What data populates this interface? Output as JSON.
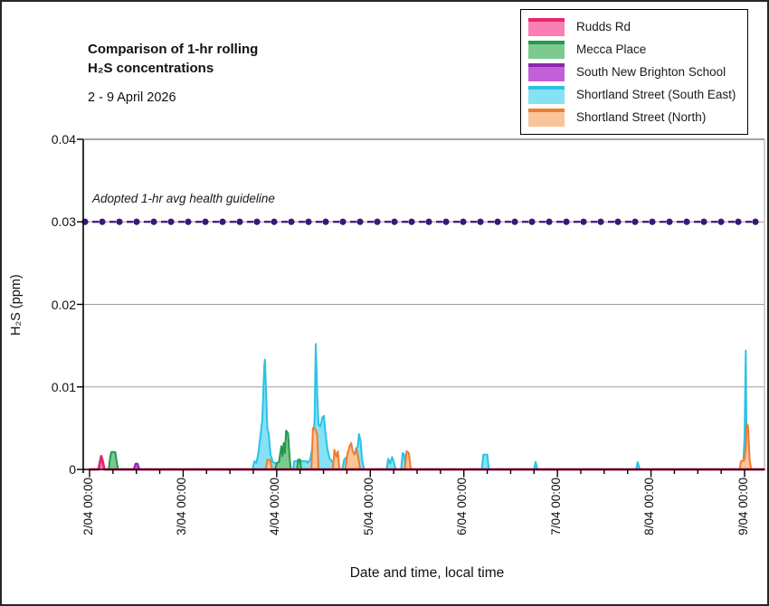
{
  "figure": {
    "title_line1": "Comparison of 1-hr rolling",
    "title_line2": "H₂S concentrations",
    "date_range": "2 - 9 April 2026"
  },
  "chart_data": {
    "type": "area",
    "title": "Comparison of 1-hr rolling H₂S concentrations",
    "subtitle": "2 - 9 April 2026",
    "xlabel": "Date and time, local time",
    "ylabel": "H₂S (ppm)",
    "ylim": [
      0,
      0.04
    ],
    "x_hours_domain": [
      0,
      173
    ],
    "grid": "horizontal-gray",
    "legend_position": "top-right",
    "y_ticks": [
      {
        "v": 0,
        "label": "0"
      },
      {
        "v": 0.01,
        "label": "0.01"
      },
      {
        "v": 0.02,
        "label": "0.02"
      },
      {
        "v": 0.03,
        "label": "0.03"
      },
      {
        "v": 0.04,
        "label": "0.04"
      }
    ],
    "x_ticks": [
      {
        "h": 0,
        "label": "2/04 00:00"
      },
      {
        "h": 24,
        "label": "3/04 00:00"
      },
      {
        "h": 48,
        "label": "4/04 00:00"
      },
      {
        "h": 72,
        "label": "5/04 00:00"
      },
      {
        "h": 96,
        "label": "6/04 00:00"
      },
      {
        "h": 120,
        "label": "7/04 00:00"
      },
      {
        "h": 144,
        "label": "8/04 00:00"
      },
      {
        "h": 168,
        "label": "9/04 00:00"
      }
    ],
    "x_minor_step_hours": 6,
    "guideline": {
      "value": 0.03,
      "label": "Adopted 1-hr avg health guideline",
      "color": "#3A1878",
      "style": "dashed-with-dot-markers"
    },
    "axis_colors": {
      "axis": "#000000",
      "grid": "#9e9e9e",
      "right_border": "#b5b5b5"
    },
    "series": [
      {
        "name": "Rudds Rd",
        "line": "#E8256D",
        "fill": "#FA7FB2",
        "points_hours_ppm": [
          [
            0,
            0
          ],
          [
            2.3,
            0
          ],
          [
            2.7,
            0.0009
          ],
          [
            3,
            0.0016
          ],
          [
            3.4,
            0.0009
          ],
          [
            3.8,
            0
          ],
          [
            173,
            0
          ]
        ]
      },
      {
        "name": "Mecca Place",
        "line": "#1F9B4D",
        "fill": "#7CC98F",
        "points_hours_ppm": [
          [
            4.9,
            0
          ],
          [
            5.3,
            0.0015
          ],
          [
            5.6,
            0.0021
          ],
          [
            6.6,
            0.0021
          ],
          [
            7,
            0.0008
          ],
          [
            7.3,
            0
          ],
          [
            47.6,
            0
          ],
          [
            48,
            0.0008
          ],
          [
            48.6,
            0.0009
          ],
          [
            48.9,
            0.0019
          ],
          [
            49.2,
            0.0028
          ],
          [
            49.5,
            0.0016
          ],
          [
            49.8,
            0.0032
          ],
          [
            50.1,
            0.002
          ],
          [
            50.4,
            0.0047
          ],
          [
            50.9,
            0.0044
          ],
          [
            51.3,
            0.0015
          ],
          [
            51.6,
            0
          ],
          [
            53.2,
            0
          ],
          [
            53.5,
            0.0012
          ],
          [
            54,
            0.0012
          ],
          [
            54.3,
            0
          ]
        ]
      },
      {
        "name": "South New Brighton School",
        "line": "#8927B0",
        "fill": "#C45FD8",
        "points_hours_ppm": [
          [
            11.3,
            0
          ],
          [
            11.8,
            0.0007
          ],
          [
            12.3,
            0.0007
          ],
          [
            12.8,
            0
          ]
        ]
      },
      {
        "name": "Shortland Street (South East)",
        "line": "#2BC2E6",
        "fill": "#85E2F5",
        "points_hours_ppm": [
          [
            41.8,
            0
          ],
          [
            42.3,
            0.001
          ],
          [
            42.8,
            0.0008
          ],
          [
            43.3,
            0.002
          ],
          [
            43.8,
            0.004
          ],
          [
            44.3,
            0.006
          ],
          [
            44.8,
            0.0125
          ],
          [
            45,
            0.0133
          ],
          [
            45.3,
            0.009
          ],
          [
            45.6,
            0.005
          ],
          [
            46,
            0.0042
          ],
          [
            46.4,
            0.0018
          ],
          [
            47,
            0.0009
          ],
          [
            48.5,
            0.0006
          ],
          [
            49,
            0
          ],
          [
            52.2,
            0
          ],
          [
            52.5,
            0.001
          ],
          [
            55.6,
            0.001
          ],
          [
            55.9,
            0.0008
          ],
          [
            56.6,
            0.0012
          ],
          [
            57.2,
            0.0028
          ],
          [
            57.7,
            0.006
          ],
          [
            58,
            0.0152
          ],
          [
            58.4,
            0.009
          ],
          [
            58.7,
            0.0055
          ],
          [
            59.2,
            0.0052
          ],
          [
            59.7,
            0.0063
          ],
          [
            60.1,
            0.0065
          ],
          [
            60.5,
            0.0045
          ],
          [
            61,
            0.0025
          ],
          [
            61.5,
            0.0014
          ],
          [
            62.3,
            0.0009
          ],
          [
            63.3,
            0.0008
          ],
          [
            63.8,
            0
          ],
          [
            64.8,
            0
          ],
          [
            65.3,
            0.0012
          ],
          [
            66,
            0.0015
          ],
          [
            66.6,
            0.001
          ],
          [
            67.3,
            0.0012
          ],
          [
            67.8,
            0.001
          ],
          [
            68.3,
            0.0025
          ],
          [
            68.8,
            0.0028
          ],
          [
            69.1,
            0.0043
          ],
          [
            69.5,
            0.0035
          ],
          [
            69.9,
            0.0012
          ],
          [
            70.4,
            0
          ],
          [
            76.2,
            0
          ],
          [
            76.6,
            0.0013
          ],
          [
            77.1,
            0.0007
          ],
          [
            77.6,
            0.0015
          ],
          [
            78.1,
            0.0008
          ],
          [
            78.5,
            0
          ],
          [
            79.9,
            0
          ],
          [
            80.3,
            0.002
          ],
          [
            80.7,
            0.0018
          ],
          [
            81.1,
            0
          ],
          [
            100.6,
            0
          ],
          [
            101,
            0.0018
          ],
          [
            102,
            0.0018
          ],
          [
            102.4,
            0
          ],
          [
            114,
            0
          ],
          [
            114.4,
            0.0009
          ],
          [
            114.9,
            0
          ],
          [
            140.2,
            0
          ],
          [
            140.6,
            0.0009
          ],
          [
            141.1,
            0
          ],
          [
            167.6,
            0
          ],
          [
            168,
            0.004
          ],
          [
            168.3,
            0.0144
          ],
          [
            168.5,
            0.003
          ],
          [
            168.8,
            0.0008
          ],
          [
            169.2,
            0
          ]
        ]
      },
      {
        "name": "Shortland Street (North)",
        "line": "#ED7D31",
        "fill": "#F9C499",
        "points_hours_ppm": [
          [
            45.2,
            0
          ],
          [
            45.6,
            0.0012
          ],
          [
            46.4,
            0.0011
          ],
          [
            46.8,
            0
          ],
          [
            56.9,
            0
          ],
          [
            57.3,
            0.005
          ],
          [
            57.9,
            0.0049
          ],
          [
            58.4,
            0.0042
          ],
          [
            58.7,
            0
          ],
          [
            62.4,
            0
          ],
          [
            62.8,
            0.0024
          ],
          [
            63.3,
            0.0015
          ],
          [
            63.7,
            0.0022
          ],
          [
            64.1,
            0
          ],
          [
            65.6,
            0
          ],
          [
            66.1,
            0.0018
          ],
          [
            66.7,
            0.0028
          ],
          [
            67.1,
            0.0032
          ],
          [
            67.5,
            0.0022
          ],
          [
            68,
            0.0018
          ],
          [
            68.5,
            0.0024
          ],
          [
            69,
            0.0012
          ],
          [
            69.4,
            0
          ],
          [
            80.9,
            0
          ],
          [
            81.3,
            0.0022
          ],
          [
            81.9,
            0.002
          ],
          [
            82.4,
            0
          ],
          [
            166.7,
            0
          ],
          [
            167.1,
            0.001
          ],
          [
            167.9,
            0.0011
          ],
          [
            168.3,
            0.0025
          ],
          [
            168.6,
            0.0055
          ],
          [
            168.9,
            0.0052
          ],
          [
            169.3,
            0.0012
          ],
          [
            169.7,
            0
          ]
        ]
      }
    ],
    "draw_order": [
      3,
      4,
      1,
      2,
      0
    ]
  }
}
